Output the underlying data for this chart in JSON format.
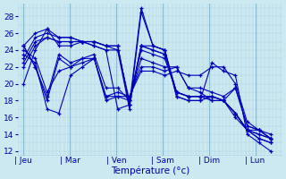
{
  "xlabel": "Température (°c)",
  "background_color": "#cce8f0",
  "grid_color_minor": "#aad4e0",
  "grid_color_major": "#88b8cc",
  "line_color": "#0000bb",
  "ylim": [
    11.5,
    29.5
  ],
  "yticks": [
    12,
    14,
    16,
    18,
    20,
    22,
    24,
    26,
    28
  ],
  "day_labels": [
    "Jeu",
    "Mar",
    "Ven",
    "Sam",
    "Dim",
    "Lun"
  ],
  "day_x": [
    0,
    24,
    48,
    72,
    96,
    120
  ],
  "xlim": [
    -3,
    134
  ],
  "series": [
    [
      20.0,
      24.0,
      26.5,
      24.5,
      24.5,
      25.0,
      25.0,
      24.5,
      24.5,
      17.5,
      29.0,
      24.5,
      24.0,
      18.5,
      18.0,
      18.0,
      22.5,
      21.5,
      21.0,
      14.0,
      13.0,
      12.0
    ],
    [
      24.5,
      26.0,
      26.5,
      25.5,
      25.5,
      25.0,
      25.0,
      24.5,
      24.0,
      17.0,
      28.5,
      24.5,
      24.0,
      18.5,
      18.0,
      18.0,
      18.5,
      18.0,
      16.0,
      14.5,
      13.5,
      13.0
    ],
    [
      23.0,
      25.5,
      26.0,
      25.5,
      25.5,
      25.0,
      25.0,
      24.5,
      24.5,
      17.5,
      24.5,
      24.5,
      24.0,
      19.0,
      18.5,
      18.5,
      18.5,
      18.0,
      16.5,
      14.5,
      13.5,
      13.0
    ],
    [
      22.5,
      25.0,
      25.5,
      25.0,
      25.0,
      25.0,
      24.5,
      24.0,
      24.0,
      18.0,
      24.5,
      24.0,
      23.5,
      19.0,
      18.5,
      18.5,
      18.0,
      18.0,
      16.5,
      14.5,
      14.0,
      13.5
    ],
    [
      22.0,
      24.5,
      25.5,
      25.0,
      25.0,
      25.0,
      24.5,
      24.0,
      17.0,
      17.5,
      24.5,
      24.0,
      23.5,
      19.0,
      18.5,
      18.5,
      18.5,
      18.0,
      16.5,
      14.5,
      14.0,
      13.5
    ],
    [
      24.0,
      23.0,
      19.0,
      21.5,
      22.0,
      23.0,
      23.5,
      19.5,
      19.5,
      18.0,
      24.0,
      23.5,
      23.0,
      19.0,
      18.5,
      18.5,
      18.5,
      18.0,
      16.5,
      14.5,
      14.5,
      14.0
    ],
    [
      23.5,
      22.5,
      17.0,
      16.5,
      21.0,
      22.0,
      23.0,
      18.5,
      18.5,
      18.0,
      23.0,
      22.5,
      22.0,
      22.0,
      19.5,
      19.0,
      18.0,
      18.0,
      19.5,
      15.0,
      14.5,
      13.5
    ],
    [
      24.5,
      22.0,
      18.0,
      23.0,
      22.0,
      22.5,
      23.0,
      18.0,
      18.5,
      18.5,
      22.0,
      22.0,
      21.5,
      22.0,
      19.5,
      19.5,
      19.0,
      18.5,
      19.5,
      15.0,
      14.5,
      13.5
    ],
    [
      24.5,
      22.0,
      18.5,
      23.5,
      22.5,
      23.0,
      23.0,
      18.5,
      19.0,
      18.5,
      21.5,
      21.5,
      21.0,
      21.5,
      21.0,
      21.0,
      22.0,
      22.0,
      20.0,
      15.5,
      14.5,
      13.5
    ]
  ],
  "x_pts_count": 22
}
